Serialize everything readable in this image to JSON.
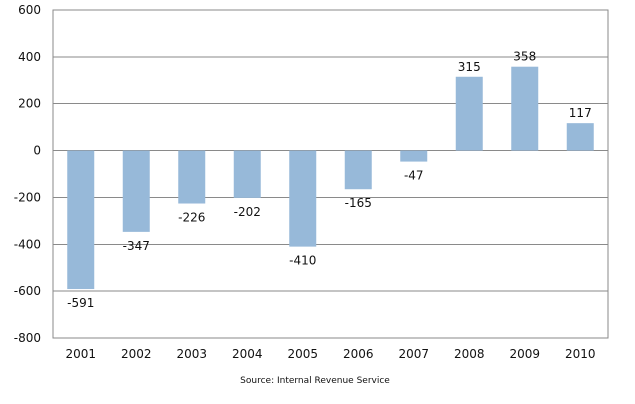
{
  "chart_data": {
    "type": "bar",
    "title": "",
    "xlabel": "",
    "ylabel": "",
    "categories": [
      "2001",
      "2002",
      "2003",
      "2004",
      "2005",
      "2006",
      "2007",
      "2008",
      "2009",
      "2010"
    ],
    "values": [
      -591,
      -347,
      -226,
      -202,
      -410,
      -165,
      -47,
      315,
      358,
      117
    ],
    "data_labels": [
      "-591",
      "-347",
      "-226",
      "-202",
      "-410",
      "-165",
      "-47",
      "315",
      "358",
      "117"
    ],
    "ylim": [
      -800,
      600
    ],
    "yticks": [
      600,
      400,
      200,
      0,
      -200,
      -400,
      -600,
      -800
    ],
    "ytick_labels": [
      "600",
      "400",
      "200",
      "0",
      "-200",
      "-400",
      "-600",
      "-800"
    ],
    "grid": true,
    "bar_color": "#97B9D9",
    "grid_color": "#8A8A8A",
    "source": "Source: Internal Revenue Service"
  }
}
